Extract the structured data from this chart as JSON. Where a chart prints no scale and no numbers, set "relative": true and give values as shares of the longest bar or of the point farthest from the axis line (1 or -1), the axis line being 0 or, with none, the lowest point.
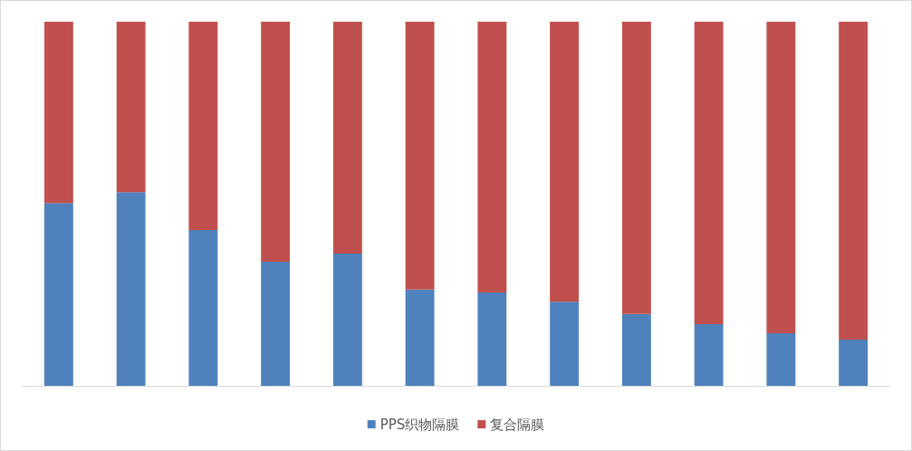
{
  "chart_data": {
    "type": "bar",
    "stacked": true,
    "relative": true,
    "legend": "bottom",
    "grid": false,
    "categories": [
      null,
      null,
      null,
      null,
      null,
      null,
      null,
      null,
      null,
      null,
      null,
      null
    ],
    "series": [
      {
        "name": "PPS织物隔膜",
        "color": "#4f81bd",
        "values": [
          0.502,
          0.532,
          0.428,
          0.341,
          0.363,
          0.264,
          0.256,
          0.231,
          0.197,
          0.169,
          0.144,
          0.127
        ]
      },
      {
        "name": "复合隔膜",
        "color": "#c0504d",
        "values": [
          0.498,
          0.468,
          0.572,
          0.659,
          0.637,
          0.736,
          0.744,
          0.769,
          0.803,
          0.831,
          0.856,
          0.873
        ]
      }
    ]
  }
}
